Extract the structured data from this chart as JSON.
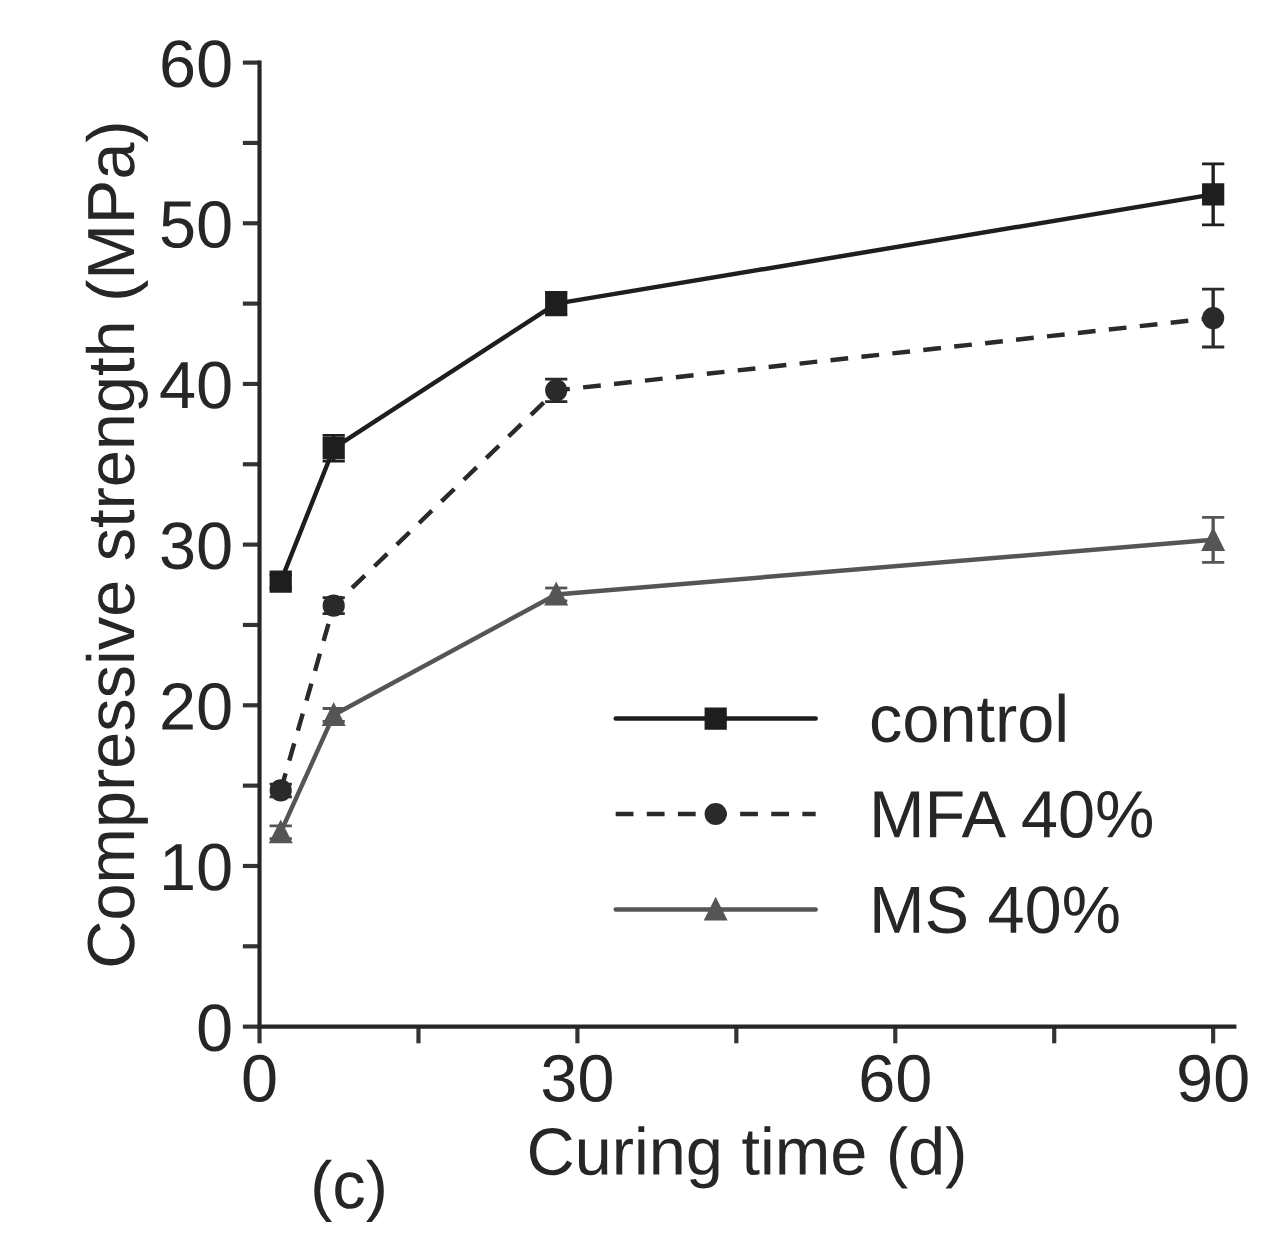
{
  "chart_data": {
    "type": "line",
    "xlabel": "Curing time (d)",
    "ylabel": "Compressive strength (MPa)",
    "x": [
      2,
      7,
      28,
      90
    ],
    "series": [
      {
        "name": "control",
        "color": "#1e1e1e",
        "values": [
          27.7,
          36.0,
          45.0,
          51.8
        ],
        "errors": [
          0.4,
          0.8,
          0.7,
          1.9
        ],
        "marker": "square",
        "line_style": "solid"
      },
      {
        "name": "MFA 40%",
        "color": "#2a2a2a",
        "values": [
          14.7,
          26.2,
          39.6,
          44.1
        ],
        "errors": [
          0.4,
          0.5,
          0.7,
          1.8
        ],
        "marker": "circle",
        "line_style": "dashed"
      },
      {
        "name": "MS 40%",
        "color": "#555555",
        "values": [
          12.1,
          19.4,
          26.9,
          30.3
        ],
        "errors": [
          0.4,
          0.4,
          0.4,
          1.4
        ],
        "marker": "triangle",
        "line_style": "solid"
      }
    ],
    "xlim": [
      0,
      92
    ],
    "ylim": [
      0,
      60
    ],
    "xticks": [
      0,
      {
        "value": 15,
        "label": null
      },
      30,
      {
        "value": 45,
        "label": null
      },
      60,
      {
        "value": 75,
        "label": null
      },
      90
    ],
    "yticks": [
      0,
      {
        "value": 5,
        "label": null
      },
      10,
      {
        "value": 15,
        "label": null
      },
      20,
      {
        "value": 25,
        "label": null
      },
      30,
      {
        "value": 35,
        "label": null
      },
      40,
      {
        "value": 45,
        "label": null
      },
      50,
      {
        "value": 55,
        "label": null
      },
      60
    ],
    "legend": "bottom right",
    "grid": false,
    "annotations": [
      "(c)"
    ]
  }
}
